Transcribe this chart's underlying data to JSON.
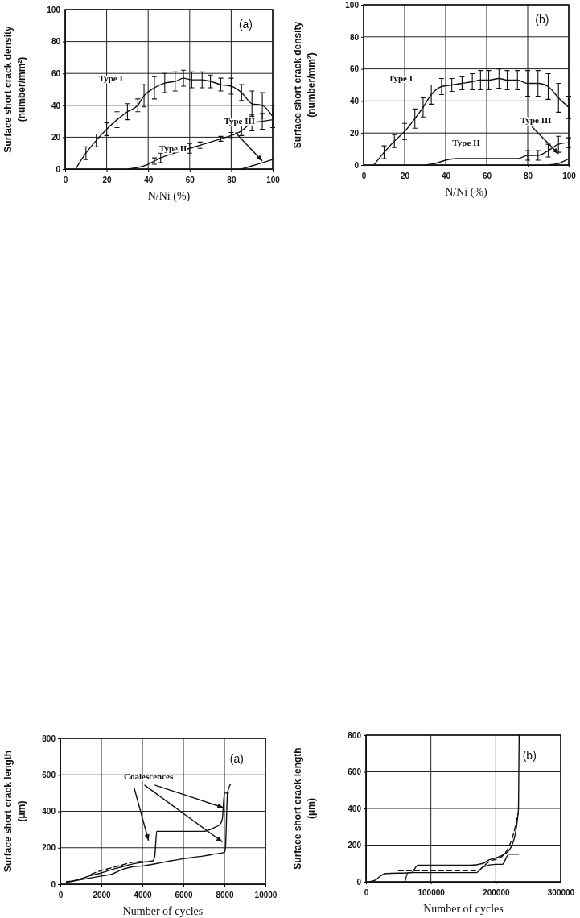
{
  "chart_data": [
    {
      "type": "line",
      "xlabel": "N/Ni      (%)",
      "ylabel": "Surface short crack density\n(number/mm²)",
      "xlim": [
        0,
        100
      ],
      "ylim": [
        0,
        100
      ],
      "xticks": [
        0,
        20,
        40,
        60,
        80,
        100
      ],
      "yticks": [
        0,
        20,
        40,
        60,
        80,
        100
      ],
      "grid": true,
      "annotations": [
        "(a)",
        "Type I",
        "Type II",
        "Type III"
      ],
      "series": [
        {
          "color": "#111111",
          "x": [
            5,
            10,
            15,
            20,
            25,
            30,
            35,
            38,
            43,
            48,
            53,
            57,
            61,
            66,
            70,
            75,
            80,
            85,
            90,
            95,
            100
          ],
          "values": [
            0,
            10,
            18,
            25,
            31,
            36,
            40,
            46,
            51,
            54,
            55,
            57,
            56,
            56,
            55,
            53,
            52,
            48,
            41,
            40,
            33
          ],
          "errors": [
            null,
            4,
            4,
            4,
            5,
            5,
            4,
            7,
            7,
            6,
            6,
            5,
            5,
            5,
            4,
            4,
            5,
            5,
            8,
            8,
            7
          ]
        },
        {
          "color": "#111111",
          "x": [
            30,
            35,
            40,
            43,
            46,
            50,
            55,
            60,
            65,
            70,
            75,
            80,
            85,
            90,
            95,
            100
          ],
          "values": [
            0,
            1,
            3,
            5,
            7,
            9,
            11,
            13,
            15,
            17,
            19,
            21,
            24,
            29,
            30,
            31
          ],
          "errors": [
            null,
            null,
            null,
            2,
            3,
            null,
            null,
            3,
            2,
            null,
            1.5,
            2,
            3,
            5,
            5,
            null
          ]
        },
        {
          "color": "#111111",
          "x": [
            85,
            90,
            95,
            100
          ],
          "values": [
            0,
            2,
            4,
            6
          ]
        }
      ]
    },
    {
      "type": "line",
      "xlabel": "N/Ni      (%)",
      "ylabel": "Surface short crack density\n(number/mm²)",
      "xlim": [
        0,
        100
      ],
      "ylim": [
        0,
        100
      ],
      "xticks": [
        0,
        20,
        40,
        60,
        80,
        100
      ],
      "yticks": [
        0,
        20,
        40,
        60,
        80,
        100
      ],
      "grid": true,
      "annotations": [
        "(b)",
        "Type I",
        "Type II",
        "Type III"
      ],
      "series": [
        {
          "color": "#111111",
          "x": [
            5,
            10,
            15,
            20,
            25,
            29,
            33,
            38,
            43,
            48,
            53,
            57,
            61,
            66,
            70,
            75,
            80,
            85,
            90,
            95,
            100
          ],
          "values": [
            0,
            8,
            15,
            21,
            29,
            36,
            44,
            49,
            50,
            51,
            52,
            53,
            53,
            54,
            53,
            53,
            51,
            51,
            49,
            42,
            36
          ],
          "errors": [
            null,
            4,
            4,
            5,
            6,
            6,
            6,
            5,
            4,
            4,
            5,
            6,
            6,
            6,
            6,
            6,
            8,
            8,
            8,
            9,
            7
          ]
        },
        {
          "color": "#111111",
          "x": [
            30,
            35,
            40,
            45,
            50,
            60,
            70,
            75,
            80,
            85,
            90,
            95,
            100
          ],
          "values": [
            0,
            1,
            3,
            4,
            4,
            4,
            4,
            4,
            6,
            6,
            9,
            13,
            14
          ],
          "errors": [
            null,
            null,
            null,
            null,
            null,
            null,
            null,
            null,
            3,
            3,
            4,
            5,
            3
          ]
        },
        {
          "color": "#111111",
          "x": [
            90,
            95,
            100
          ],
          "values": [
            0,
            1,
            4
          ]
        }
      ]
    },
    {
      "type": "line",
      "xlabel": "Number of cycles",
      "ylabel": "Surface short crack length\n(μm)",
      "xlim": [
        0,
        10000
      ],
      "ylim": [
        0,
        800
      ],
      "xticks": [
        0,
        2000,
        4000,
        6000,
        8000,
        10000
      ],
      "yticks": [
        0,
        200,
        400,
        600,
        800
      ],
      "grid": true,
      "annotations": [
        "(a)",
        {
          "text": "Coalescences",
          "x": 7950,
          "y": 420
        }
      ],
      "series": [
        {
          "color": "#111111",
          "x": [
            300,
            600,
            1000,
            1500,
            2000,
            2500,
            3000,
            3500,
            4000,
            4500,
            4600,
            4700,
            6000,
            7000,
            7500,
            7800,
            7900,
            8000,
            8200
          ],
          "values": [
            15,
            18,
            30,
            48,
            62,
            80,
            95,
            110,
            120,
            128,
            150,
            290,
            290,
            290,
            310,
            330,
            360,
            500,
            500
          ]
        },
        {
          "color": "#111111",
          "line_style": "dashed",
          "x": [
            1500,
            2000,
            2500,
            3000,
            3500,
            4000
          ],
          "values": [
            55,
            75,
            90,
            105,
            120,
            125
          ]
        },
        {
          "color": "#111111",
          "x": [
            300,
            1000,
            1500,
            2000,
            2500,
            3000,
            3500,
            4000,
            5000,
            6000,
            7000,
            7500,
            8000,
            8050,
            8150,
            8300
          ],
          "values": [
            10,
            25,
            35,
            45,
            55,
            80,
            95,
            100,
            120,
            140,
            155,
            165,
            175,
            200,
            500,
            550
          ]
        }
      ]
    },
    {
      "type": "line",
      "xlabel": "Number of cycles",
      "ylabel": "Surface short crack length\n(μm)",
      "xlim": [
        0,
        300000
      ],
      "ylim": [
        0,
        800
      ],
      "xticks": [
        0,
        100000,
        200000,
        300000
      ],
      "yticks": [
        0,
        200,
        400,
        600,
        800
      ],
      "grid": true,
      "annotations": [
        "(b)"
      ],
      "series": [
        {
          "color": "#111111",
          "x": [
            5000,
            15000,
            20000,
            30000,
            70000,
            80000,
            160000,
            180000,
            190000,
            200000,
            210000,
            220000,
            225000,
            230000,
            233000,
            235000,
            236000
          ],
          "values": [
            0,
            10,
            25,
            45,
            50,
            90,
            90,
            100,
            120,
            130,
            145,
            170,
            200,
            260,
            330,
            400,
            800
          ]
        },
        {
          "color": "#111111",
          "line_style": "dashed",
          "x": [
            50000,
            170000,
            190000,
            210000,
            220000,
            230000,
            234000
          ],
          "values": [
            60,
            60,
            110,
            140,
            190,
            300,
            370
          ]
        },
        {
          "color": "#111111",
          "x": [
            60000,
            65000,
            100000,
            170000,
            180000,
            200000,
            210000,
            220000,
            235000
          ],
          "values": [
            0,
            50,
            50,
            50,
            80,
            95,
            95,
            150,
            150
          ]
        }
      ]
    }
  ]
}
